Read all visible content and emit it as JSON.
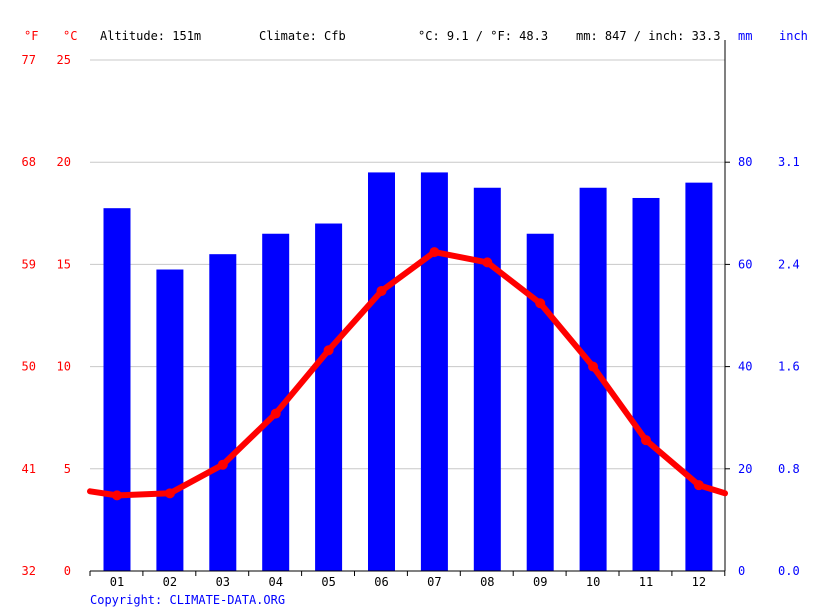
{
  "header": {
    "f_unit": "°F",
    "c_unit": "°C",
    "altitude": "Altitude: 151m",
    "climate": "Climate: Cfb",
    "avg_temp": "°C: 9.1 / °F: 48.3",
    "precip_total": "mm: 847 / inch: 33.3",
    "mm_unit": "mm",
    "inch_unit": "inch"
  },
  "copyright": "Copyright: CLIMATE-DATA.ORG",
  "colors": {
    "temperature": "#ff0000",
    "precipitation": "#0000ff",
    "grid": "#c8c8c8",
    "axis": "#000000"
  },
  "chart_data": {
    "type": "bar",
    "categories": [
      "01",
      "02",
      "03",
      "04",
      "05",
      "06",
      "07",
      "08",
      "09",
      "10",
      "11",
      "12"
    ],
    "series": [
      {
        "type": "bar",
        "axis": "right",
        "values": [
          71,
          59,
          62,
          66,
          68,
          78,
          78,
          75,
          66,
          75,
          73,
          76
        ]
      },
      {
        "type": "line",
        "axis": "left",
        "values": [
          3.7,
          3.8,
          5.2,
          7.7,
          10.8,
          13.7,
          15.6,
          15.1,
          13.1,
          10.0,
          6.4,
          4.2
        ]
      }
    ],
    "line_start": 3.9,
    "line_end": 3.8,
    "left_axis": {
      "celsius_ticks": [
        "0",
        "5",
        "10",
        "15",
        "20",
        "25"
      ],
      "fahrenheit_ticks": [
        "32",
        "41",
        "50",
        "59",
        "68",
        "77"
      ],
      "ylim": [
        0,
        25
      ]
    },
    "right_axis": {
      "mm_ticks": [
        "0",
        "20",
        "40",
        "60",
        "80"
      ],
      "inch_ticks": [
        "0.0",
        "0.8",
        "1.6",
        "2.4",
        "3.1"
      ],
      "ylim": [
        0,
        100
      ]
    },
    "grid": true
  }
}
